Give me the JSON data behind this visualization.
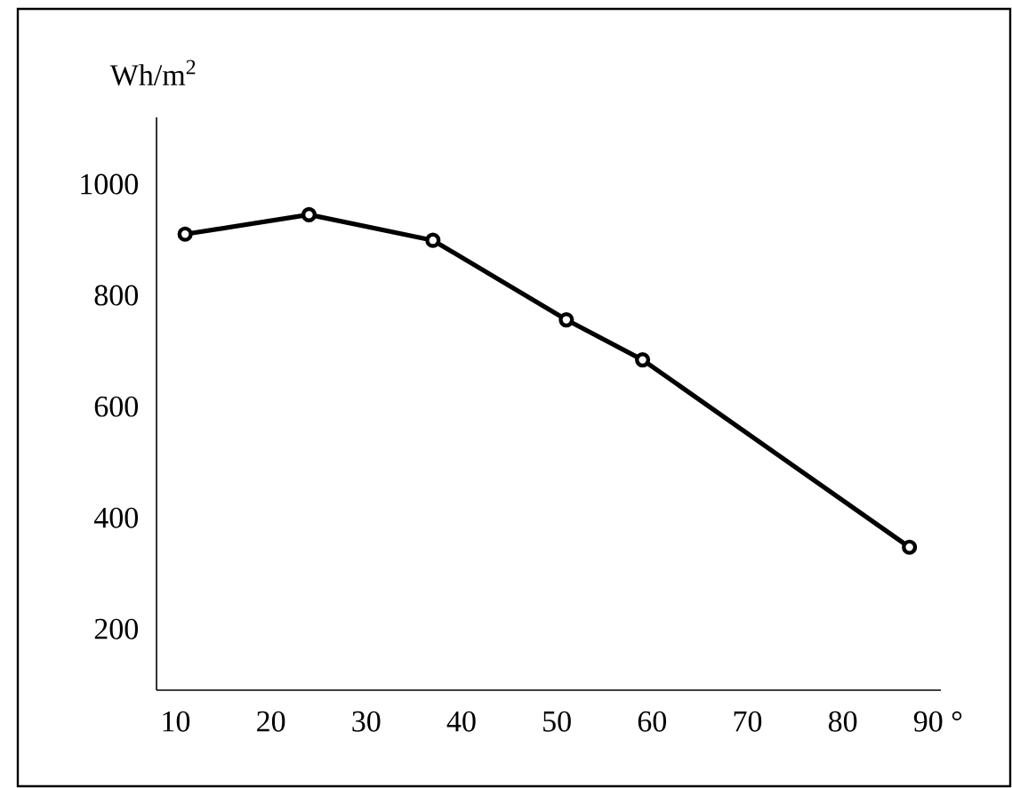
{
  "chart_data": {
    "type": "line",
    "ylabel": "Wh/m$^{2}$",
    "x": [
      11,
      24,
      37,
      51,
      59,
      87
    ],
    "series": [
      {
        "color": "#000000",
        "values": [
          910,
          945,
          899,
          756,
          684,
          347
        ]
      }
    ],
    "xlim": [
      8,
      90.3
    ],
    "ylim": [
      90,
      1120
    ],
    "xticks": [
      10,
      20,
      30,
      40,
      50,
      60,
      70,
      80,
      {
        "value": 90,
        "label": "90 °"
      }
    ],
    "yticks": [
      200,
      400,
      600,
      800,
      1000
    ],
    "marker": "circle",
    "line_style": "solid",
    "grid": false
  }
}
